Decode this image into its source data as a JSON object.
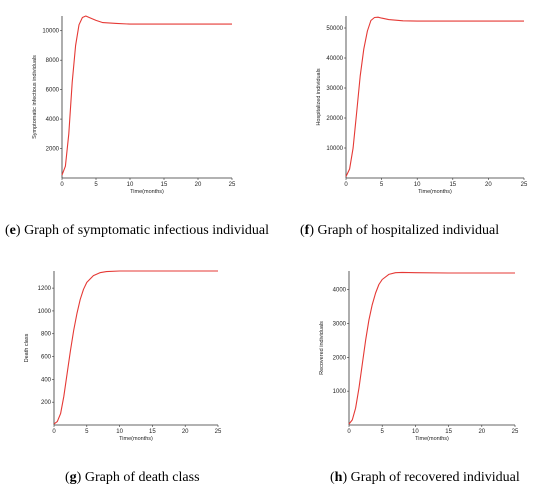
{
  "chart_data": [
    {
      "panel_id": "e",
      "type": "line",
      "caption_letter": "e",
      "caption_text": " Graph of symptomatic infectious individual",
      "xlabel": "Time(months)",
      "ylabel": "Symptomatic infectious individuals",
      "xlim": [
        0,
        25
      ],
      "ylim": [
        0,
        11000
      ],
      "xticks": [
        0,
        5,
        10,
        15,
        20,
        25
      ],
      "yticks": [
        2000,
        4000,
        6000,
        8000,
        10000
      ],
      "line_color": "#e53935",
      "series": [
        {
          "x": [
            0,
            0.5,
            1,
            1.5,
            2,
            2.5,
            3,
            3.5,
            4,
            5,
            6,
            8,
            10,
            15,
            20,
            25
          ],
          "y": [
            200,
            800,
            3000,
            6500,
            9000,
            10400,
            10900,
            11000,
            10900,
            10700,
            10550,
            10500,
            10450,
            10450,
            10450,
            10450
          ]
        }
      ]
    },
    {
      "panel_id": "f",
      "type": "line",
      "caption_letter": "f",
      "caption_text": " Graph of hospitalized individual",
      "xlabel": "Time(months)",
      "ylabel": "Hospitalized individuals",
      "xlim": [
        0,
        25
      ],
      "ylim": [
        0,
        54000
      ],
      "xticks": [
        0,
        5,
        10,
        15,
        20,
        25
      ],
      "yticks": [
        10000,
        20000,
        30000,
        40000,
        50000
      ],
      "line_color": "#e53935",
      "series": [
        {
          "x": [
            0,
            0.5,
            1,
            1.5,
            2,
            2.5,
            3,
            3.5,
            4,
            4.5,
            5,
            6,
            8,
            10,
            15,
            20,
            25
          ],
          "y": [
            500,
            3000,
            10000,
            22000,
            34000,
            43000,
            49000,
            52500,
            53500,
            53600,
            53300,
            52800,
            52400,
            52300,
            52300,
            52300,
            52300
          ]
        }
      ]
    },
    {
      "panel_id": "g",
      "type": "line",
      "caption_letter": "g",
      "caption_text": " Graph of death class",
      "xlabel": "Time(months)",
      "ylabel": "Death class",
      "xlim": [
        0,
        25
      ],
      "ylim": [
        0,
        1350
      ],
      "xticks": [
        0,
        5,
        10,
        15,
        20,
        25
      ],
      "yticks": [
        200,
        400,
        600,
        800,
        1000,
        1200
      ],
      "line_color": "#e53935",
      "series": [
        {
          "x": [
            0,
            0.5,
            1,
            1.5,
            2,
            2.5,
            3,
            3.5,
            4,
            4.5,
            5,
            6,
            7,
            8,
            10,
            15,
            20,
            25
          ],
          "y": [
            10,
            30,
            100,
            250,
            450,
            650,
            830,
            980,
            1100,
            1190,
            1250,
            1310,
            1335,
            1345,
            1350,
            1350,
            1350,
            1350
          ]
        }
      ]
    },
    {
      "panel_id": "h",
      "type": "line",
      "caption_letter": "h",
      "caption_text": " Graph of recovered individual",
      "xlabel": "Time(months)",
      "ylabel": "Recovered individuals",
      "xlim": [
        0,
        25
      ],
      "ylim": [
        0,
        4550
      ],
      "xticks": [
        0,
        5,
        10,
        15,
        20,
        25
      ],
      "yticks": [
        1000,
        2000,
        3000,
        4000
      ],
      "line_color": "#e53935",
      "series": [
        {
          "x": [
            0,
            0.5,
            1,
            1.5,
            2,
            2.5,
            3,
            3.5,
            4,
            4.5,
            5,
            6,
            7,
            8,
            10,
            15,
            20,
            25
          ],
          "y": [
            30,
            150,
            500,
            1100,
            1800,
            2500,
            3100,
            3550,
            3900,
            4150,
            4300,
            4450,
            4500,
            4510,
            4500,
            4490,
            4490,
            4490
          ]
        }
      ]
    }
  ]
}
